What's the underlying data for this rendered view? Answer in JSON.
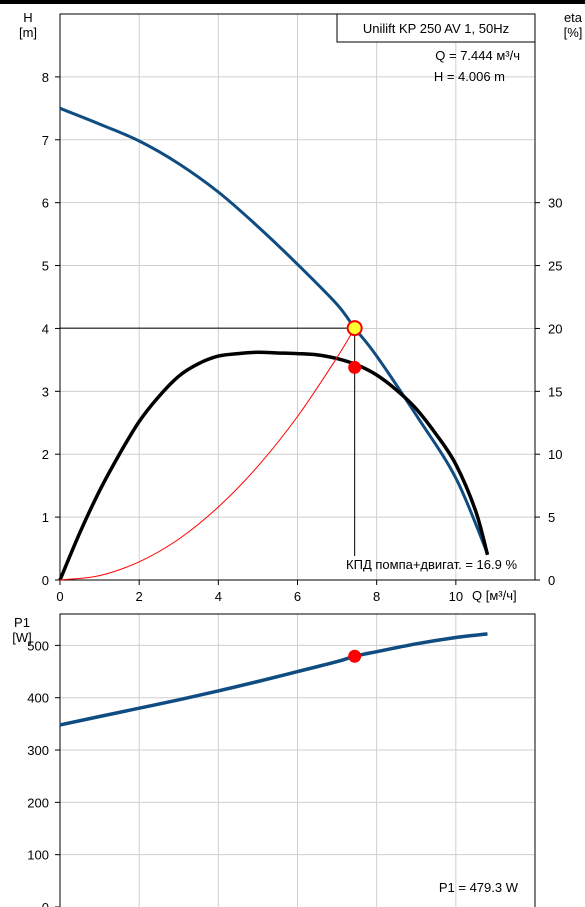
{
  "chart_data": [
    {
      "type": "line",
      "title": "Unilift KP 250 AV 1, 50Hz",
      "xlabel": "Q [м³/ч]",
      "ylabel_left": [
        "H",
        "[m]"
      ],
      "ylabel_right": [
        "eta",
        "[%]"
      ],
      "xlim": [
        0,
        12
      ],
      "ylim_left": [
        0,
        9
      ],
      "ylim_right": [
        0,
        45
      ],
      "x_ticks": [
        0,
        2,
        4,
        6,
        8,
        10
      ],
      "y_ticks_left": [
        0,
        1,
        2,
        3,
        4,
        5,
        6,
        7,
        8
      ],
      "y_ticks_right": [
        0,
        5,
        10,
        15,
        20,
        25,
        30
      ],
      "grid": true,
      "series": [
        {
          "key": "head",
          "axis": "left",
          "color": "#0f4c81",
          "x": [
            0,
            1,
            2,
            3,
            4,
            5,
            6,
            7,
            7.444,
            8,
            9,
            10,
            10.8
          ],
          "y": [
            7.5,
            7.25,
            6.98,
            6.62,
            6.17,
            5.62,
            5.02,
            4.38,
            4.006,
            3.56,
            2.62,
            1.62,
            0.42
          ]
        },
        {
          "key": "efficiency",
          "axis": "right",
          "color": "#000000",
          "x": [
            0,
            0.5,
            1,
            1.5,
            2,
            2.5,
            3,
            3.5,
            4,
            4.5,
            5,
            5.5,
            6,
            6.5,
            7,
            7.5,
            8,
            8.5,
            9,
            9.5,
            10,
            10.5,
            10.8
          ],
          "y": [
            0,
            3.75,
            7.1,
            10.0,
            12.6,
            14.6,
            16.2,
            17.2,
            17.8,
            18.0,
            18.1,
            18.05,
            18.0,
            17.9,
            17.6,
            17.1,
            16.3,
            15.1,
            13.6,
            11.6,
            9.2,
            5.5,
            2.0
          ]
        },
        {
          "key": "system",
          "axis": "left",
          "color": "#ff0000",
          "x": [
            0,
            1,
            2,
            3,
            4,
            5,
            6,
            7,
            7.444
          ],
          "y": [
            0,
            0.07,
            0.29,
            0.65,
            1.16,
            1.81,
            2.6,
            3.54,
            4.006
          ]
        }
      ],
      "duty_point": {
        "q": 7.444,
        "h": 4.006,
        "eta": 16.9
      },
      "annotations": {
        "q_label": "Q = 7.444 м³/ч",
        "h_label": "H = 4.006 m",
        "eta_label": "КПД помпа+двигат. = 16.9 %"
      }
    },
    {
      "type": "line",
      "ylabel": [
        "P1",
        "[W]"
      ],
      "xlim": [
        0,
        12
      ],
      "ylim": [
        0,
        560
      ],
      "y_ticks": [
        0,
        100,
        200,
        300,
        400,
        500
      ],
      "grid": true,
      "series": [
        {
          "key": "power",
          "color": "#0f4c81",
          "x": [
            0,
            1,
            2,
            3,
            4,
            5,
            6,
            7,
            7.444,
            8,
            9,
            10,
            10.8
          ],
          "y": [
            348,
            364,
            380,
            396,
            413,
            431,
            450,
            469,
            479.3,
            488,
            503,
            515,
            522
          ]
        }
      ],
      "duty_point": {
        "q": 7.444,
        "p1": 479.3
      },
      "annotations": {
        "p1_label": "P1 = 479.3 W"
      }
    }
  ]
}
